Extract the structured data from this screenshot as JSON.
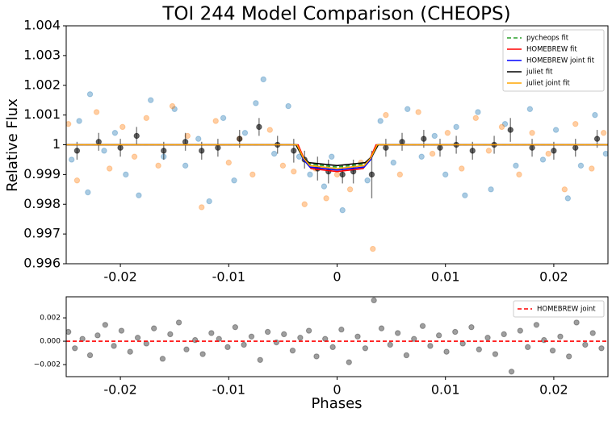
{
  "chart_data": [
    {
      "type": "scatter",
      "title": "TOI 244 Model Comparison (CHEOPS)",
      "y_label": "Relative Flux",
      "xlim": [
        -0.025,
        0.025
      ],
      "ylim": [
        0.996,
        1.004
      ],
      "xticks": [
        -0.02,
        -0.01,
        0,
        0.01,
        0.02
      ],
      "yticks": [
        0.996,
        0.997,
        0.998,
        0.999,
        1,
        1.001,
        1.002,
        1.003,
        1.004
      ],
      "legend": "upper right",
      "series": [
        {
          "color": "#1f77b4",
          "x": [
            -0.0245,
            -0.0238,
            -0.023,
            -0.0228,
            -0.0215,
            -0.0205,
            -0.0195,
            -0.0183,
            -0.0172,
            -0.016,
            -0.015,
            -0.014,
            -0.0128,
            -0.0118,
            -0.0105,
            -0.0095,
            -0.0085,
            -0.0075,
            -0.0068,
            -0.0058,
            -0.0045,
            -0.0035,
            -0.0025,
            -0.0012,
            -0.0005,
            0.0005,
            0.0015,
            0.0028,
            0.004,
            0.0052,
            0.0065,
            0.0078,
            0.009,
            0.01,
            0.011,
            0.0118,
            0.013,
            0.0142,
            0.0155,
            0.0165,
            0.0178,
            0.019,
            0.0202,
            0.0213,
            0.0225,
            0.0238,
            0.0248
          ],
          "values": [
            0.9995,
            1.0008,
            0.9984,
            1.0017,
            0.9998,
            1.0004,
            0.999,
            0.9983,
            1.0015,
            0.9996,
            1.0012,
            0.9993,
            1.0002,
            0.9981,
            1.0009,
            0.9988,
            1.0004,
            1.0014,
            1.0022,
            0.9997,
            1.0013,
            0.9996,
            0.999,
            0.9986,
            0.9996,
            0.9978,
            0.9992,
            0.9988,
            1.0008,
            0.9994,
            1.0012,
            0.9996,
            1.0003,
            0.999,
            1.0006,
            0.9983,
            1.0011,
            0.9985,
            1.0007,
            0.9993,
            1.0012,
            0.9995,
            1.0005,
            0.9982,
            0.9993,
            1.001,
            0.9997
          ]
        },
        {
          "color": "#ff7f0e",
          "x": [
            -0.0248,
            -0.024,
            -0.0222,
            -0.021,
            -0.0198,
            -0.0187,
            -0.0176,
            -0.0165,
            -0.0152,
            -0.0138,
            -0.0125,
            -0.0112,
            -0.01,
            -0.009,
            -0.0078,
            -0.0062,
            -0.005,
            -0.004,
            -0.003,
            -0.002,
            -0.001,
            0,
            0.0012,
            0.0022,
            0.0033,
            0.0045,
            0.0058,
            0.0075,
            0.0088,
            0.0102,
            0.0115,
            0.0128,
            0.014,
            0.0152,
            0.0168,
            0.018,
            0.0195,
            0.021,
            0.022,
            0.0235,
            0.0246
          ],
          "values": [
            1.0007,
            0.9988,
            1.0011,
            0.9992,
            1.0006,
            0.9996,
            1.0009,
            0.9993,
            1.0013,
            1.0003,
            0.9979,
            1.0008,
            0.9994,
            1.0002,
            0.999,
            1.0005,
            0.9993,
            0.9991,
            0.998,
            0.9992,
            0.9982,
            0.999,
            0.9985,
            0.9994,
            0.9965,
            1.001,
            0.999,
            1.0011,
            0.9997,
            1.0004,
            0.9992,
            1.0009,
            0.9998,
            1.0006,
            0.999,
            1.0004,
            0.9997,
            0.9985,
            1.0007,
            0.9992,
            1.0004
          ]
        },
        {
          "color": "#000000",
          "x": [
            -0.024,
            -0.022,
            -0.02,
            -0.0185,
            -0.016,
            -0.014,
            -0.0125,
            -0.011,
            -0.009,
            -0.0072,
            -0.0055,
            -0.004,
            -0.003,
            -0.0018,
            -0.0008,
            0.0005,
            0.0015,
            0.0032,
            0.0045,
            0.006,
            0.008,
            0.0095,
            0.011,
            0.0125,
            0.0145,
            0.016,
            0.018,
            0.02,
            0.022,
            0.024
          ],
          "values": [
            0.9998,
            1.0001,
            0.9999,
            1.0003,
            0.9998,
            1.0001,
            0.9998,
            0.9999,
            1.0002,
            1.0006,
            1,
            0.9998,
            0.9995,
            0.9992,
            0.9991,
            0.999,
            0.9991,
            0.999,
            0.9999,
            1.0001,
            1.0002,
            0.9999,
            1,
            0.9998,
            1,
            1.0005,
            0.9999,
            0.9998,
            0.9999,
            1.0002
          ],
          "errors": [
            0.0003,
            0.0003,
            0.0003,
            0.0003,
            0.0003,
            0.0003,
            0.0003,
            0.0003,
            0.0003,
            0.0003,
            0.0003,
            0.0004,
            0.0003,
            0.0004,
            0.0004,
            0.0003,
            0.0004,
            0.0008,
            0.0003,
            0.0003,
            0.0003,
            0.0003,
            0.0003,
            0.0003,
            0.0003,
            0.0004,
            0.0003,
            0.0003,
            0.0003,
            0.0003
          ]
        },
        {
          "name": "pycheops fit",
          "color": "#2ca02c",
          "dashed": true,
          "x": [
            -0.025,
            -0.0037,
            -0.0031,
            -0.0025,
            0,
            0.0025,
            0.0031,
            0.0037,
            0.025
          ],
          "values": [
            1,
            1,
            0.9995,
            0.99935,
            0.99925,
            0.99935,
            0.9995,
            1,
            1
          ]
        },
        {
          "name": "HOMEBREW fit",
          "color": "#ff0000",
          "x": [
            -0.025,
            -0.0036,
            -0.003,
            -0.0024,
            0,
            0.0024,
            0.003,
            0.0036,
            0.025
          ],
          "values": [
            1,
            1,
            0.9995,
            0.9992,
            0.9991,
            0.9992,
            0.9995,
            1,
            1
          ]
        },
        {
          "name": "HOMEBREW joint fit",
          "color": "#0000ff",
          "x": [
            -0.025,
            -0.0037,
            -0.0031,
            -0.0025,
            0,
            0.0025,
            0.0031,
            0.0037,
            0.025
          ],
          "values": [
            1,
            1,
            0.9995,
            0.99925,
            0.99915,
            0.99925,
            0.9995,
            1,
            1
          ]
        },
        {
          "name": "juliet fit",
          "color": "#000000",
          "x": [
            -0.025,
            -0.0038,
            -0.0032,
            -0.0026,
            0,
            0.0026,
            0.0032,
            0.0038,
            0.025
          ],
          "values": [
            1,
            1,
            0.9996,
            0.9994,
            0.9993,
            0.9994,
            0.9996,
            1,
            1
          ]
        },
        {
          "name": "juliet joint fit",
          "color": "#ffa500",
          "x": [
            -0.025,
            -0.0037,
            -0.0031,
            -0.0025,
            0,
            0.0025,
            0.0031,
            0.0037,
            0.025
          ],
          "values": [
            1,
            1,
            0.99955,
            0.9993,
            0.9992,
            0.9993,
            0.99955,
            1,
            1
          ]
        }
      ]
    },
    {
      "type": "scatter",
      "x_label": "Phases",
      "xlim": [
        -0.025,
        0.025
      ],
      "ylim": [
        -0.00303,
        0.0038
      ],
      "xticks": [
        -0.02,
        -0.01,
        0,
        0.01,
        0.02
      ],
      "yticks": [
        {
          "value": -0.002,
          "label": "−0.002"
        },
        {
          "value": 0,
          "label": "0.000"
        },
        0.002
      ],
      "legend": "upper right",
      "series": [
        {
          "color": "#000000",
          "x": [
            -0.0248,
            -0.0242,
            -0.0235,
            -0.0228,
            -0.0221,
            -0.0214,
            -0.0206,
            -0.0199,
            -0.0191,
            -0.0184,
            -0.0176,
            -0.0169,
            -0.0161,
            -0.0154,
            -0.0146,
            -0.0139,
            -0.0131,
            -0.0124,
            -0.0116,
            -0.0109,
            -0.0101,
            -0.0094,
            -0.0086,
            -0.0079,
            -0.0071,
            -0.0064,
            -0.0056,
            -0.0049,
            -0.0041,
            -0.0034,
            -0.0026,
            -0.0019,
            -0.0011,
            -0.0004,
            0.0004,
            0.0011,
            0.0019,
            0.0026,
            0.0034,
            0.0041,
            0.0049,
            0.0056,
            0.0064,
            0.0071,
            0.0079,
            0.0086,
            0.0094,
            0.0101,
            0.0109,
            0.0116,
            0.0124,
            0.0131,
            0.0139,
            0.0146,
            0.0154,
            0.0161,
            0.0169,
            0.0176,
            0.0184,
            0.0191,
            0.0199,
            0.0206,
            0.0214,
            0.0221,
            0.0229,
            0.0236,
            0.0244
          ],
          "values": [
            0.0008,
            -0.0006,
            0.0002,
            -0.0012,
            0.0005,
            0.0014,
            -0.0004,
            0.0009,
            -0.0009,
            0.0003,
            -0.0002,
            0.0011,
            -0.0015,
            0.0006,
            0.0016,
            -0.0007,
            0.0001,
            -0.0011,
            0.0007,
            0.0002,
            -0.0005,
            0.0012,
            -0.0003,
            0.0004,
            -0.0016,
            0.0008,
            -0.0001,
            0.0006,
            -0.0008,
            0.0003,
            0.0009,
            -0.0013,
            0.0002,
            -0.0005,
            0.001,
            -0.0018,
            0.0004,
            -0.0006,
            0.0035,
            0.0011,
            -0.0003,
            0.0007,
            -0.0012,
            0.0002,
            0.0013,
            -0.0004,
            0.0005,
            -0.0009,
            0.0008,
            -0.0002,
            0.0012,
            -0.0007,
            0.0003,
            -0.0011,
            0.0006,
            -0.0026,
            0.0009,
            -0.0005,
            0.0014,
            0.0001,
            -0.0008,
            0.0004,
            -0.0013,
            0.0016,
            -0.0003,
            0.0007,
            -0.0006
          ]
        },
        {
          "name": "HOMEBREW joint",
          "color": "#ff0000",
          "dashed": true,
          "x": [
            -0.025,
            0.025
          ],
          "values": [
            0,
            0
          ]
        }
      ]
    }
  ]
}
